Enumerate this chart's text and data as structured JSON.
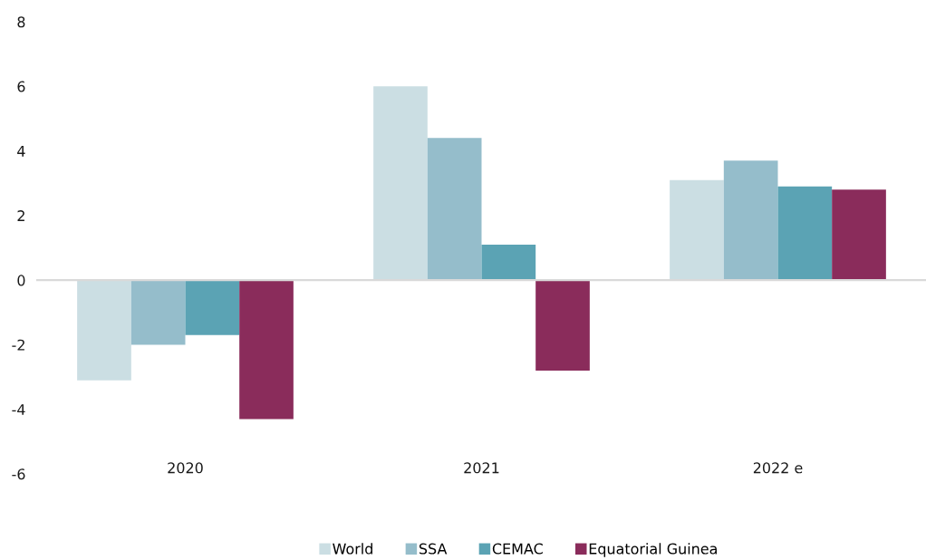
{
  "chart_data": {
    "type": "bar",
    "categories": [
      "2020",
      "2021",
      "2022 e"
    ],
    "series": [
      {
        "name": "World",
        "color": "#cbdee3",
        "values": [
          -3.1,
          6.0,
          3.1
        ]
      },
      {
        "name": "SSA",
        "color": "#95bdcb",
        "values": [
          -2.0,
          4.4,
          3.7
        ]
      },
      {
        "name": "CEMAC",
        "color": "#5ba3b4",
        "values": [
          -1.7,
          1.1,
          2.9
        ]
      },
      {
        "name": "Equatorial Guinea",
        "color": "#8a2c5b",
        "values": [
          -4.3,
          -2.8,
          2.8
        ]
      }
    ],
    "ylim": [
      -6,
      8
    ],
    "yticks": [
      -6,
      -4,
      -2,
      0,
      2,
      4,
      6,
      8
    ],
    "legend": "bottom"
  }
}
